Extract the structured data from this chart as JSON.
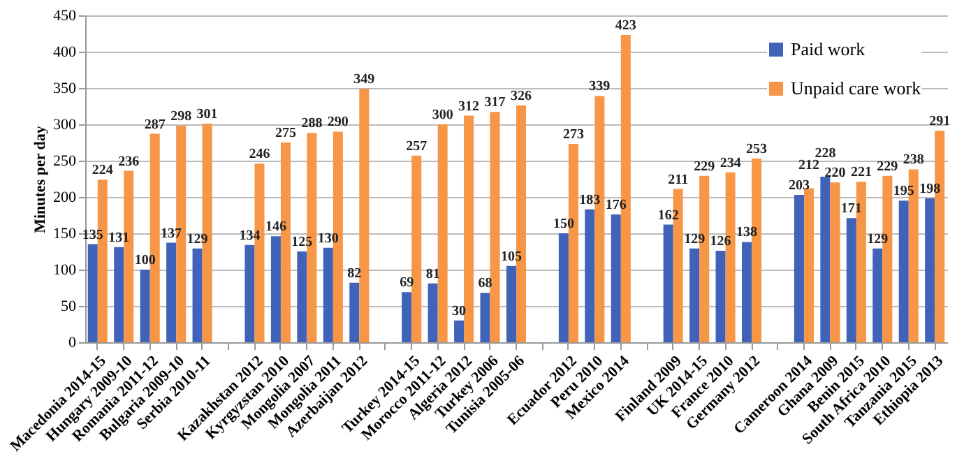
{
  "chart_data": {
    "type": "bar",
    "ylabel": "Minutes per day",
    "categories": [
      "Macedonia 2014-15",
      "Hungary 2009-10",
      "Romania 2011-12",
      "Bulgaria 2009-10",
      "Serbia 2010-11",
      null,
      "Kazakhstan 2012",
      "Kyrgyzstan 2010",
      "Mongolia 2007",
      "Mongolia 2011",
      "Azerbaijan 2012",
      null,
      "Turkey 2014-15",
      "Morocco 2011-12",
      "Algeria 2012",
      "Turkey 2006",
      "Tunisia 2005-06",
      null,
      "Ecuador 2012",
      "Peru 2010",
      "Mexico 2014",
      null,
      "Finland 2009",
      "UK 2014-15",
      "France 2010",
      "Germany 2012",
      null,
      "Cameroon 2014",
      "Ghana 2009",
      "Benin 2015",
      "South Africa 2010",
      "Tanzania 2015",
      "Ethiopia 2013"
    ],
    "series": [
      {
        "name": "Paid work",
        "color": "#4062b8",
        "values": [
          135,
          131,
          100,
          137,
          129,
          null,
          134,
          146,
          125,
          130,
          82,
          null,
          69,
          81,
          30,
          68,
          105,
          null,
          150,
          183,
          176,
          null,
          162,
          129,
          126,
          138,
          null,
          203,
          228,
          171,
          129,
          195,
          198
        ]
      },
      {
        "name": "Unpaid care work",
        "color": "#f79646",
        "values": [
          224,
          236,
          287,
          298,
          301,
          null,
          246,
          275,
          288,
          290,
          349,
          null,
          257,
          300,
          312,
          317,
          326,
          null,
          273,
          339,
          423,
          null,
          211,
          229,
          234,
          253,
          null,
          212,
          220,
          221,
          229,
          238,
          291
        ]
      }
    ],
    "ylim": [
      0,
      450
    ],
    "yticks": [
      0,
      50,
      100,
      150,
      200,
      250,
      300,
      350,
      400,
      450
    ],
    "grid": "y",
    "legend": "top right",
    "data_labels": true
  }
}
